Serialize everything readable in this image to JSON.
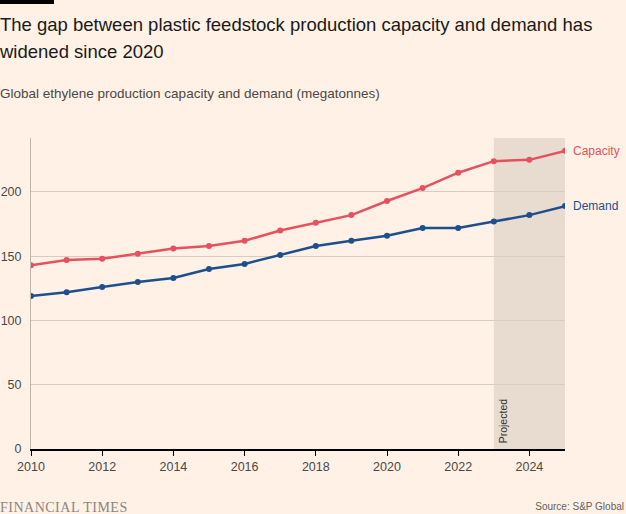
{
  "chart_data": {
    "type": "line",
    "title": "The gap between plastic feedstock production capacity and demand has widened since 2020",
    "subtitle": "Global ethylene production capacity and demand (megatonnes)",
    "x": [
      2010,
      2011,
      2012,
      2013,
      2014,
      2015,
      2016,
      2017,
      2018,
      2019,
      2020,
      2021,
      2022,
      2023,
      2024,
      2025
    ],
    "series": [
      {
        "name": "Capacity",
        "color": "#e5515f",
        "marker": "circle",
        "line_style": "solid",
        "values": [
          143,
          147,
          148,
          152,
          156,
          158,
          162,
          170,
          176,
          182,
          193,
          203,
          215,
          224,
          225,
          232
        ]
      },
      {
        "name": "Demand",
        "color": "#1e4f8c",
        "marker": "circle",
        "line_style": "solid",
        "values": [
          119,
          122,
          126,
          130,
          133,
          140,
          144,
          151,
          158,
          162,
          166,
          172,
          172,
          177,
          182,
          189
        ]
      }
    ],
    "xlim": [
      2010,
      2025
    ],
    "xticks": [
      2010,
      2012,
      2014,
      2016,
      2018,
      2020,
      2022,
      2024
    ],
    "ylim": [
      0,
      242
    ],
    "yticks": [
      0,
      50,
      100,
      150,
      200
    ],
    "grid": true,
    "projected_region": {
      "from": 2023,
      "to": 2025,
      "label": "Projected"
    },
    "publisher": "FINANCIAL TIMES",
    "source": "Source: S&P Global"
  }
}
